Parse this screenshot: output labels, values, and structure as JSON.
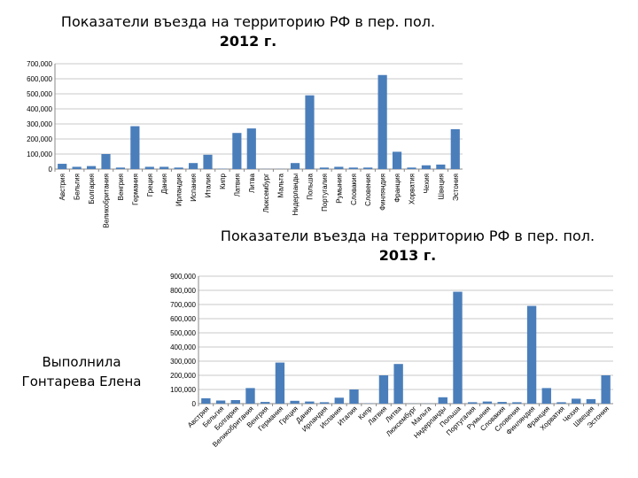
{
  "chart_data": [
    {
      "type": "bar",
      "title_line1": "Показатели въезда на территорию РФ в пер. пол.",
      "title_line2": "2012 г.",
      "categories": [
        "Австрия",
        "Бельгия",
        "Болгария",
        "Великобритания",
        "Венгрия",
        "Германия",
        "Греция",
        "Дания",
        "Ирландия",
        "Испания",
        "Италия",
        "Кипр",
        "Латвия",
        "Литва",
        "Люксембург",
        "Мальта",
        "Нидерланды",
        "Польша",
        "Португалия",
        "Румыния",
        "Словакия",
        "Словения",
        "Финляндия",
        "Франция",
        "Хорватия",
        "Чехия",
        "Швеция",
        "Эстония"
      ],
      "values": [
        35000,
        15000,
        20000,
        100000,
        10000,
        285000,
        15000,
        15000,
        10000,
        40000,
        95000,
        2000,
        240000,
        270000,
        1000,
        1000,
        40000,
        490000,
        10000,
        15000,
        10000,
        10000,
        625000,
        115000,
        10000,
        25000,
        30000,
        265000
      ],
      "y_ticks": [
        "0",
        "100,000",
        "200,000",
        "300,000",
        "400,000",
        "500,000",
        "600,000",
        "700,000"
      ],
      "ylim": [
        0,
        700000
      ],
      "grid": true,
      "bar_color": "#4a7ebb"
    },
    {
      "type": "bar",
      "title_line1": "Показатели въезда на территорию РФ в пер. пол.",
      "title_line2": "2013 г.",
      "categories": [
        "Австрия",
        "Бельгия",
        "Болгария",
        "Великобритания",
        "Венгрия",
        "Германия",
        "Греция",
        "Дания",
        "Ирландия",
        "Испания",
        "Италия",
        "Кипр",
        "Латвия",
        "Литва",
        "Люксембург",
        "Мальта",
        "Нидерланды",
        "Польша",
        "Португалия",
        "Румыния",
        "Словакия",
        "Словения",
        "Финляндия",
        "Франция",
        "Хорватия",
        "Чехия",
        "Швеция",
        "Эстония"
      ],
      "values": [
        38000,
        22000,
        25000,
        110000,
        12000,
        290000,
        20000,
        15000,
        10000,
        42000,
        100000,
        2000,
        200000,
        280000,
        1000,
        1000,
        45000,
        790000,
        10000,
        15000,
        12000,
        10000,
        690000,
        110000,
        10000,
        35000,
        32000,
        200000
      ],
      "y_ticks": [
        "0",
        "100,000",
        "200,000",
        "300,000",
        "400,000",
        "500,000",
        "600,000",
        "700,000",
        "800,000",
        "900,000"
      ],
      "ylim": [
        0,
        900000
      ],
      "grid": true,
      "bar_color": "#4a7ebb"
    }
  ],
  "author": {
    "line1": "Выполнила",
    "line2": "Гонтарева Елена"
  }
}
